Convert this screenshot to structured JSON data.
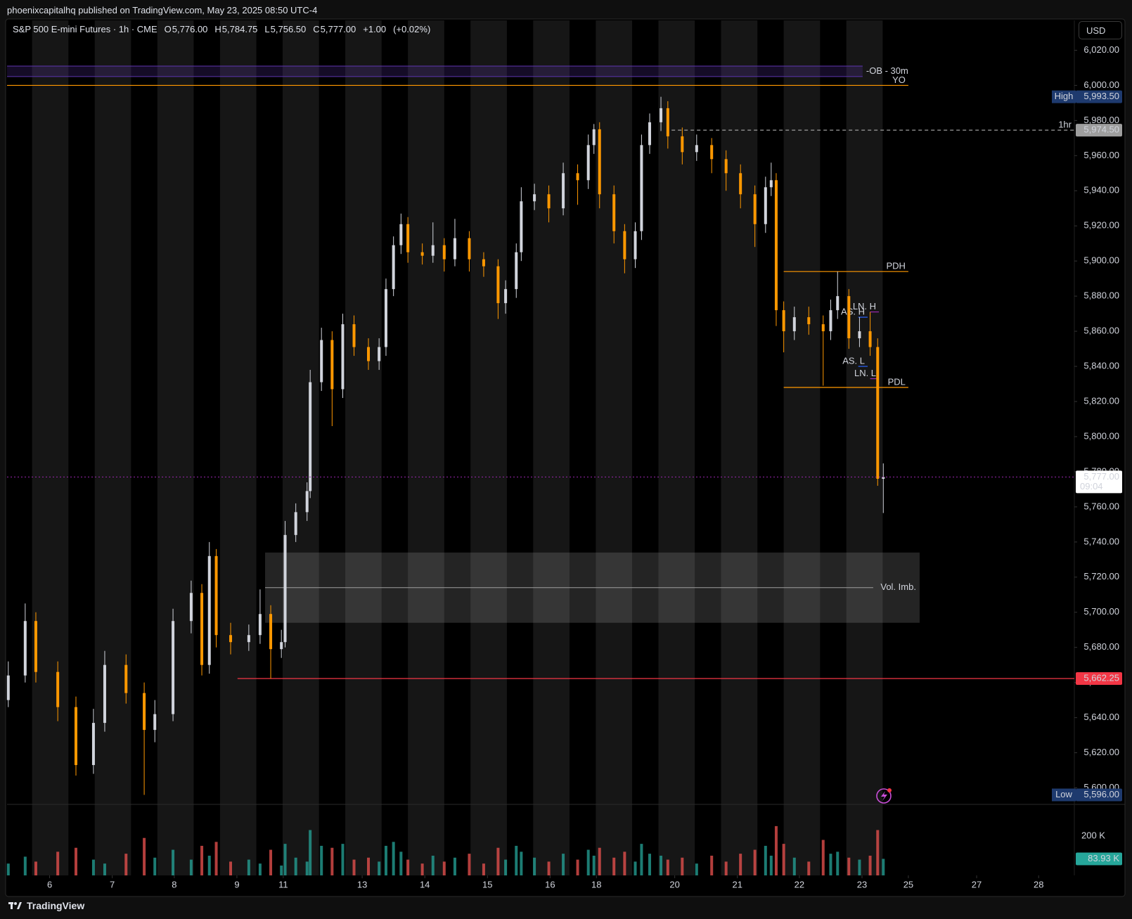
{
  "header": {
    "publisher": "phoenixcapitalhq published on TradingView.com, May 23, 2025 08:50 UTC-4",
    "brand": "TradingView"
  },
  "chart_data": {
    "type": "candlestick",
    "title": "S&P 500 E-mini Futures · 1h · CME",
    "ohlc_legend": [
      {
        "key": "O",
        "value": 5776,
        "label": "5,776.00"
      },
      {
        "key": "H",
        "value": 5784.75,
        "label": "5,784.75"
      },
      {
        "key": "L",
        "value": 5756.5,
        "label": "5,756.50"
      },
      {
        "key": "C",
        "value": 5777,
        "label": "5,777.00"
      }
    ],
    "change": {
      "value": 1,
      "label": "+1.00"
    },
    "change_pct": {
      "value": 0.02,
      "label": "(+0.02%)"
    },
    "currency": "USD",
    "x": [
      -0.66,
      -0.39,
      -0.22,
      0.13,
      0.42,
      0.7,
      0.88,
      1.22,
      1.51,
      1.68,
      1.97,
      2.26,
      2.43,
      2.55,
      2.66,
      2.89,
      3.18,
      3.36,
      3.53,
      3.7,
      3.76,
      3.93,
      4.11,
      4.16,
      4.34,
      4.51,
      4.68,
      4.86,
      5.09,
      5.26,
      5.37,
      5.49,
      5.61,
      5.72,
      5.95,
      6.12,
      6.3,
      6.47,
      6.7,
      6.93,
      7.16,
      7.28,
      7.45,
      7.53,
      7.74,
      7.97,
      8.2,
      8.43,
      8.6,
      8.69,
      8.78,
      9.01,
      9.18,
      9.35,
      9.45,
      9.58,
      9.76,
      9.87,
      10.1,
      10.33,
      10.57,
      10.8,
      11.03,
      11.26,
      11.43,
      11.52,
      11.6,
      11.72,
      11.89,
      12.12,
      12.35,
      12.47,
      12.58,
      12.76,
      12.93,
      13.1,
      13.22,
      13.31
    ],
    "open": [
      5650,
      5664,
      5695,
      5666,
      5646,
      5613,
      5637,
      5670,
      5654,
      5633,
      5642,
      5695,
      5711,
      5670,
      5732,
      5687,
      5683,
      5687,
      5699,
      5679,
      5683,
      5744,
      5757,
      5769,
      5831,
      5855,
      5827,
      5864,
      5851,
      5843,
      5851,
      5884,
      5909,
      5921,
      5905,
      5903,
      5909,
      5901,
      5913,
      5901,
      5897,
      5876,
      5884,
      5905,
      5934,
      5938,
      5930,
      5950,
      5946,
      5966,
      5975,
      5938,
      5917,
      5901,
      5917,
      5966,
      5979,
      5987,
      5971,
      5962,
      5966,
      5958,
      5950,
      5938,
      5921,
      5942,
      5946,
      5872,
      5860,
      5868,
      5864,
      5860,
      5872,
      5880,
      5856,
      5860,
      5851,
      5776
    ],
    "high": [
      5672,
      5705,
      5700,
      5672,
      5652,
      5645,
      5678,
      5676,
      5660,
      5650,
      5702,
      5718,
      5716,
      5740,
      5736,
      5694,
      5693,
      5713,
      5704,
      5690,
      5752,
      5762,
      5774,
      5838,
      5862,
      5860,
      5870,
      5869,
      5856,
      5856,
      5890,
      5914,
      5927,
      5925,
      5910,
      5922,
      5913,
      5924,
      5917,
      5905,
      5901,
      5889,
      5910,
      5942,
      5944,
      5943,
      5956,
      5955,
      5972,
      5978,
      5979,
      5943,
      5921,
      5922,
      5972,
      5984,
      5993.5,
      5991,
      5976,
      5972,
      5970,
      5963,
      5955,
      5943,
      5948,
      5956,
      5950,
      5877,
      5874,
      5874,
      5869,
      5878,
      5894,
      5884,
      5868,
      5871,
      5856,
      5784.75
    ],
    "low": [
      5646,
      5660,
      5660,
      5638,
      5607,
      5608,
      5632,
      5648,
      5596,
      5626,
      5638,
      5688,
      5664,
      5665,
      5680,
      5676,
      5678,
      5682,
      5662.25,
      5674,
      5680,
      5740,
      5752,
      5765,
      5826,
      5806,
      5822,
      5846,
      5838,
      5838,
      5846,
      5880,
      5904,
      5899,
      5898,
      5899,
      5894,
      5897,
      5894,
      5891,
      5867,
      5870,
      5879,
      5900,
      5929,
      5922,
      5926,
      5932,
      5941,
      5961,
      5930,
      5910,
      5893,
      5896,
      5912,
      5961,
      5974,
      5964,
      5955,
      5957,
      5950,
      5940,
      5930,
      5908,
      5916,
      5937,
      5863,
      5848,
      5855,
      5858,
      5829,
      5855,
      5867,
      5850,
      5851,
      5846,
      5772,
      5756.5
    ],
    "close": [
      5664,
      5695,
      5666,
      5646,
      5613,
      5637,
      5670,
      5654,
      5633,
      5642,
      5695,
      5711,
      5670,
      5732,
      5687,
      5683,
      5687,
      5699,
      5679,
      5683,
      5744,
      5757,
      5769,
      5831,
      5855,
      5827,
      5864,
      5851,
      5843,
      5851,
      5884,
      5909,
      5921,
      5905,
      5903,
      5909,
      5901,
      5913,
      5901,
      5897,
      5876,
      5884,
      5905,
      5934,
      5938,
      5930,
      5950,
      5946,
      5966,
      5975,
      5938,
      5917,
      5901,
      5917,
      5966,
      5979,
      5987,
      5971,
      5962,
      5966,
      5958,
      5950,
      5938,
      5921,
      5942,
      5946,
      5872,
      5860,
      5868,
      5864,
      5860,
      5872,
      5880,
      5856,
      5860,
      5851,
      5776,
      5777
    ],
    "up_color": "#d1d4dc",
    "down_color": "#ff9800",
    "xlim": [
      -0.68,
      16.36
    ],
    "xticks": [
      {
        "value": 0,
        "label": "6"
      },
      {
        "value": 1.0,
        "label": "7"
      },
      {
        "value": 1.99,
        "label": "8"
      },
      {
        "value": 2.99,
        "label": "9"
      },
      {
        "value": 3.73,
        "label": "11"
      },
      {
        "value": 4.99,
        "label": "13"
      },
      {
        "value": 5.99,
        "label": "14"
      },
      {
        "value": 6.99,
        "label": "15"
      },
      {
        "value": 7.99,
        "label": "16"
      },
      {
        "value": 8.73,
        "label": "18"
      },
      {
        "value": 9.98,
        "label": "20"
      },
      {
        "value": 10.98,
        "label": "21"
      },
      {
        "value": 11.97,
        "label": "22"
      },
      {
        "value": 12.97,
        "label": "23"
      },
      {
        "value": 13.71,
        "label": "25"
      },
      {
        "value": 14.8,
        "label": "27"
      },
      {
        "value": 15.79,
        "label": "28"
      }
    ],
    "ylim": [
      5591,
      6037
    ],
    "yticks": [
      {
        "value": 5600,
        "label": "5,600.00"
      },
      {
        "value": 5620,
        "label": "5,620.00"
      },
      {
        "value": 5640,
        "label": "5,640.00"
      },
      {
        "value": 5660,
        "label": "5,660.00"
      },
      {
        "value": 5680,
        "label": "5,680.00"
      },
      {
        "value": 5700,
        "label": "5,700.00"
      },
      {
        "value": 5720,
        "label": "5,720.00"
      },
      {
        "value": 5740,
        "label": "5,740.00"
      },
      {
        "value": 5760,
        "label": "5,760.00"
      },
      {
        "value": 5780,
        "label": "5,780.00"
      },
      {
        "value": 5800,
        "label": "5,800.00"
      },
      {
        "value": 5820,
        "label": "5,820.00"
      },
      {
        "value": 5840,
        "label": "5,840.00"
      },
      {
        "value": 5860,
        "label": "5,860.00"
      },
      {
        "value": 5880,
        "label": "5,880.00"
      },
      {
        "value": 5900,
        "label": "5,900.00"
      },
      {
        "value": 5920,
        "label": "5,920.00"
      },
      {
        "value": 5940,
        "label": "5,940.00"
      },
      {
        "value": 5960,
        "label": "5,960.00"
      },
      {
        "value": 5980,
        "label": "5,980.00"
      },
      {
        "value": 6000,
        "label": "6,000.00"
      },
      {
        "value": 6020,
        "label": "6,020.00"
      }
    ],
    "volume": {
      "values": [
        60000,
        95000,
        70000,
        120000,
        140000,
        80000,
        60000,
        110000,
        190000,
        90000,
        130000,
        80000,
        150000,
        100000,
        170000,
        70000,
        80000,
        60000,
        130000,
        50000,
        160000,
        90000,
        70000,
        230000,
        150000,
        140000,
        160000,
        80000,
        90000,
        70000,
        150000,
        170000,
        120000,
        80000,
        60000,
        100000,
        70000,
        90000,
        110000,
        60000,
        140000,
        80000,
        150000,
        120000,
        90000,
        70000,
        110000,
        80000,
        130000,
        100000,
        140000,
        90000,
        120000,
        70000,
        160000,
        110000,
        100000,
        80000,
        90000,
        60000,
        100000,
        70000,
        110000,
        130000,
        150000,
        100000,
        250000,
        160000,
        90000,
        70000,
        180000,
        110000,
        120000,
        90000,
        80000,
        100000,
        230000,
        83930
      ],
      "up_color": "#26a69a",
      "down_color": "#ef5350",
      "ylim": [
        0,
        353000
      ],
      "yticks": [
        {
          "value": 200000,
          "label": "200 K"
        }
      ],
      "last": {
        "value": 83930,
        "label": "83.93 K"
      }
    },
    "zones": [
      {
        "label": "-OB - 30m",
        "low": 6005,
        "high": 6011,
        "start": -0.68,
        "end": 12.98,
        "color": "#5e35b1",
        "label_color": "#ff9800"
      },
      {
        "label": "Vol. Imb.",
        "low": 5694,
        "high": 5734,
        "mid": 5714,
        "start": 3.44,
        "end": 13.89,
        "color": "#ffffff",
        "label_color": "#ff9800"
      }
    ],
    "levels": [
      {
        "label": "YO",
        "value": 6000,
        "start": -0.68,
        "end": 13.71,
        "color": "#ff9800",
        "style": "solid"
      },
      {
        "label": "1hr",
        "value": 5974.5,
        "value_label": "5,974.50",
        "start": 9.93,
        "end": 16.36,
        "color": "#9e9e9e",
        "style": "dashed"
      },
      {
        "label": "PDH",
        "value": 5894,
        "start": 11.72,
        "end": 13.71,
        "color": "#ff9800",
        "style": "solid"
      },
      {
        "label": "PDL",
        "value": 5828,
        "start": 11.72,
        "end": 13.71,
        "color": "#ff9800",
        "style": "solid"
      },
      {
        "label": "AS. H",
        "value": 5868,
        "start": 12.91,
        "end": 13.06,
        "color": "#2962ff",
        "style": "solid"
      },
      {
        "label": "AS. L",
        "value": 5840,
        "start": 12.91,
        "end": 13.06,
        "color": "#2962ff",
        "style": "solid"
      },
      {
        "label": "LN. H",
        "value": 5871,
        "start": 13.1,
        "end": 13.24,
        "color": "#9c27b0",
        "style": "solid"
      },
      {
        "label": "LN. L",
        "value": 5833,
        "start": 13.1,
        "end": 13.24,
        "color": "#9c27b0",
        "style": "solid"
      },
      {
        "value": 5662.25,
        "value_label": "5,662.25",
        "start": 3.0,
        "end": 16.36,
        "color": "#f23645",
        "style": "solid"
      }
    ],
    "last_price": {
      "value": 5777,
      "label": "5,777.00",
      "countdown": "09:04",
      "color": "#9c27b0"
    },
    "extremes": [
      {
        "label": "High",
        "value": 5993.5,
        "value_label": "5,993.50"
      },
      {
        "label": "Low",
        "value": 5596,
        "value_label": "5,596.00"
      }
    ]
  }
}
